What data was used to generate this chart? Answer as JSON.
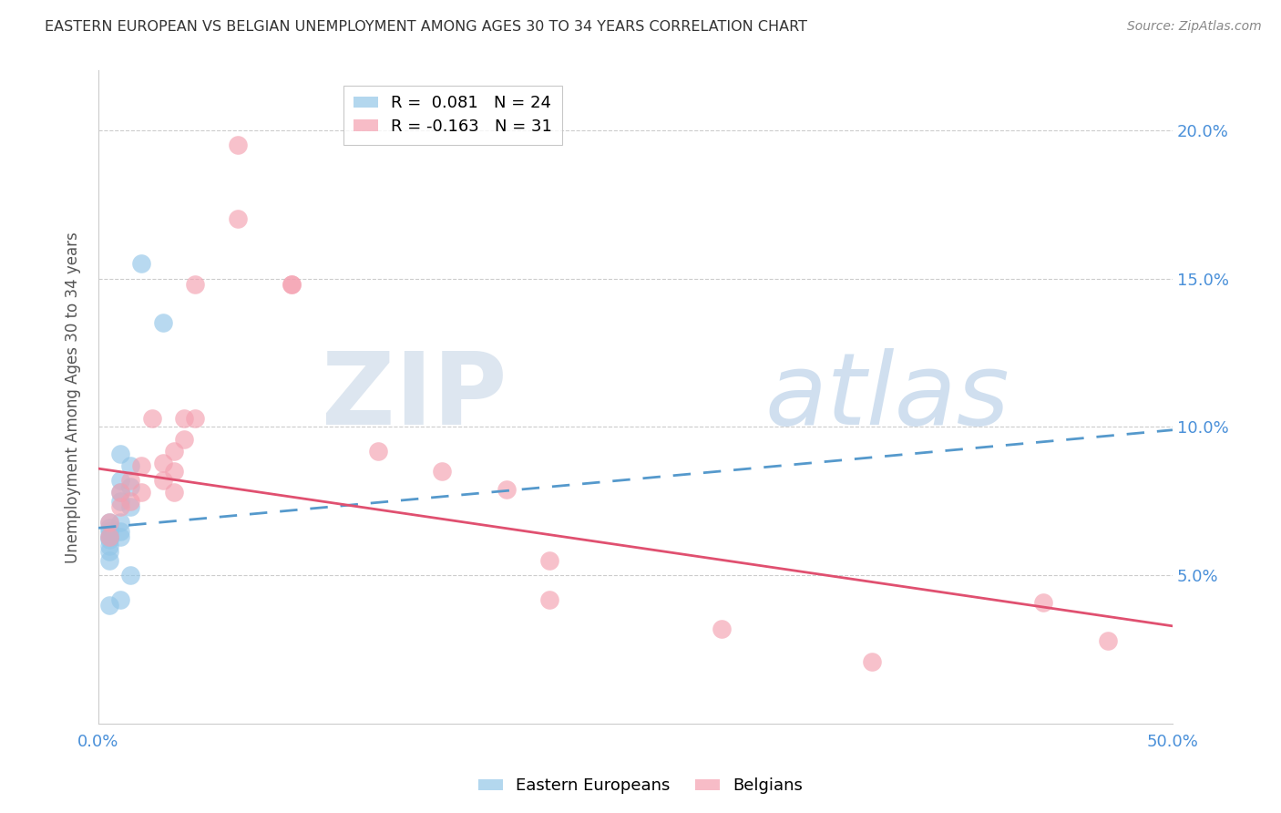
{
  "title": "EASTERN EUROPEAN VS BELGIAN UNEMPLOYMENT AMONG AGES 30 TO 34 YEARS CORRELATION CHART",
  "source": "Source: ZipAtlas.com",
  "ylabel": "Unemployment Among Ages 30 to 34 years",
  "xlim": [
    0.0,
    0.5
  ],
  "ylim": [
    0.0,
    0.22
  ],
  "yticks": [
    0.05,
    0.1,
    0.15,
    0.2
  ],
  "ytick_labels": [
    "5.0%",
    "10.0%",
    "15.0%",
    "20.0%"
  ],
  "legend_entry1_label": "R =  0.081   N = 24",
  "legend_entry2_label": "R = -0.163   N = 31",
  "blue_color": "#93c6e8",
  "pink_color": "#f4a0b0",
  "blue_line_color": "#5599cc",
  "pink_line_color": "#e05070",
  "eastern_europeans_x": [
    0.005,
    0.005,
    0.005,
    0.005,
    0.005,
    0.005,
    0.005,
    0.005,
    0.005,
    0.005,
    0.01,
    0.01,
    0.01,
    0.01,
    0.01,
    0.01,
    0.01,
    0.01,
    0.015,
    0.015,
    0.015,
    0.015,
    0.02,
    0.03
  ],
  "eastern_europeans_y": [
    0.068,
    0.066,
    0.065,
    0.063,
    0.063,
    0.062,
    0.06,
    0.058,
    0.055,
    0.04,
    0.091,
    0.082,
    0.078,
    0.075,
    0.068,
    0.065,
    0.063,
    0.042,
    0.087,
    0.08,
    0.073,
    0.05,
    0.155,
    0.135
  ],
  "belgians_x": [
    0.005,
    0.005,
    0.01,
    0.01,
    0.015,
    0.015,
    0.02,
    0.02,
    0.025,
    0.03,
    0.03,
    0.035,
    0.035,
    0.035,
    0.04,
    0.04,
    0.045,
    0.045,
    0.065,
    0.065,
    0.09,
    0.09,
    0.13,
    0.16,
    0.19,
    0.21,
    0.21,
    0.29,
    0.36,
    0.44,
    0.47
  ],
  "belgians_y": [
    0.068,
    0.063,
    0.078,
    0.073,
    0.082,
    0.075,
    0.087,
    0.078,
    0.103,
    0.088,
    0.082,
    0.092,
    0.085,
    0.078,
    0.103,
    0.096,
    0.148,
    0.103,
    0.195,
    0.17,
    0.148,
    0.148,
    0.092,
    0.085,
    0.079,
    0.055,
    0.042,
    0.032,
    0.021,
    0.041,
    0.028
  ],
  "blue_trendline_x": [
    0.0,
    0.5
  ],
  "blue_trendline_y": [
    0.066,
    0.099
  ],
  "pink_trendline_x": [
    0.0,
    0.5
  ],
  "pink_trendline_y": [
    0.086,
    0.033
  ]
}
